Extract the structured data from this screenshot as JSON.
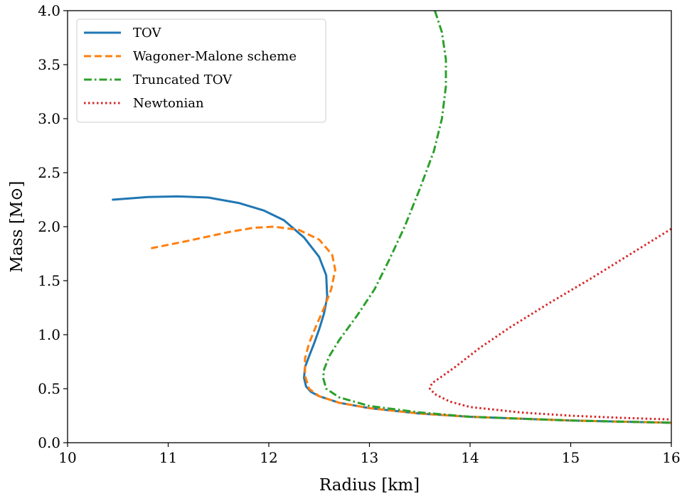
{
  "chart_data": {
    "type": "line",
    "title": "",
    "xlabel": "Radius [km]",
    "ylabel": "Mass [M⊙]",
    "xlim": [
      10,
      16
    ],
    "ylim": [
      0.0,
      4.0
    ],
    "xticks": [
      "10",
      "11",
      "12",
      "13",
      "14",
      "15",
      "16"
    ],
    "yticks": [
      "0.0",
      "0.5",
      "1.0",
      "1.5",
      "2.0",
      "2.5",
      "3.0",
      "3.5",
      "4.0"
    ],
    "grid": false,
    "legend_position": "top-left",
    "series": [
      {
        "name": "TOV",
        "color": "#1f77b4",
        "style": "solid",
        "x": [
          10.45,
          10.8,
          11.1,
          11.4,
          11.7,
          11.95,
          12.15,
          12.35,
          12.5,
          12.57,
          12.58,
          12.55,
          12.5,
          12.45,
          12.4,
          12.36,
          12.35,
          12.37,
          12.42,
          12.5,
          12.7,
          13.0,
          13.5,
          14.0,
          15.0,
          16.0
        ],
        "y": [
          2.25,
          2.275,
          2.28,
          2.27,
          2.22,
          2.15,
          2.06,
          1.9,
          1.72,
          1.55,
          1.35,
          1.2,
          1.05,
          0.92,
          0.8,
          0.7,
          0.6,
          0.52,
          0.47,
          0.43,
          0.37,
          0.32,
          0.27,
          0.24,
          0.205,
          0.185
        ]
      },
      {
        "name": "Wagoner-Malone scheme",
        "color": "#ff7f0e",
        "style": "dashed",
        "x": [
          10.83,
          11.2,
          11.6,
          11.85,
          12.05,
          12.3,
          12.5,
          12.63,
          12.66,
          12.62,
          12.55,
          12.47,
          12.4,
          12.36,
          12.36,
          12.4,
          12.5,
          12.7,
          13.0,
          13.5,
          14.0,
          15.0,
          16.0
        ],
        "y": [
          1.8,
          1.87,
          1.95,
          1.99,
          2.0,
          1.97,
          1.88,
          1.74,
          1.6,
          1.42,
          1.25,
          1.08,
          0.92,
          0.78,
          0.62,
          0.5,
          0.43,
          0.37,
          0.32,
          0.27,
          0.24,
          0.205,
          0.185
        ]
      },
      {
        "name": "Truncated TOV",
        "color": "#2ca02c",
        "style": "dashdot",
        "x": [
          13.65,
          13.72,
          13.76,
          13.76,
          13.72,
          13.64,
          13.5,
          13.35,
          13.2,
          13.05,
          12.88,
          12.7,
          12.6,
          12.55,
          12.54,
          12.57,
          12.7,
          13.0,
          13.5,
          14.0,
          15.0,
          16.0
        ],
        "y": [
          4.0,
          3.8,
          3.55,
          3.3,
          3.0,
          2.7,
          2.35,
          2.0,
          1.7,
          1.42,
          1.18,
          0.95,
          0.8,
          0.68,
          0.6,
          0.5,
          0.42,
          0.34,
          0.28,
          0.24,
          0.205,
          0.185
        ]
      },
      {
        "name": "Newtonian",
        "color": "#d62728",
        "style": "dotted",
        "x": [
          16.0,
          15.6,
          15.2,
          14.8,
          14.4,
          14.1,
          13.85,
          13.7,
          13.62,
          13.6,
          13.65,
          13.8,
          14.0,
          14.5,
          15.0,
          15.5,
          16.0
        ],
        "y": [
          1.98,
          1.75,
          1.52,
          1.3,
          1.07,
          0.88,
          0.7,
          0.6,
          0.55,
          0.5,
          0.45,
          0.38,
          0.33,
          0.28,
          0.25,
          0.23,
          0.215
        ]
      }
    ]
  }
}
